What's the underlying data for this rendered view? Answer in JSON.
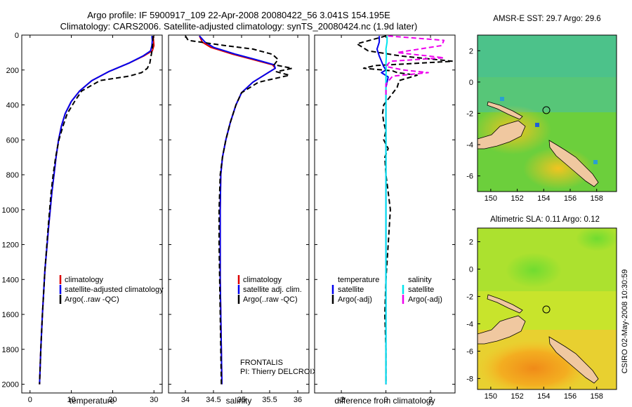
{
  "header": {
    "line1": "Argo profile: IF 5900917_109 22-Apr-2008 20080422_56 3.041S 154.195E",
    "line2": "Climatology: CARS2006. Satellite-adjusted climatology: synTS_20080424.nc (1.9d later)"
  },
  "footer": {
    "stamp": "CSIRO 02-May-2008 10:30:59",
    "pi_line1": "FRONTALIS",
    "pi_line2": "PI: Thierry DELCROIX"
  },
  "colors": {
    "climatology": "#dd0000",
    "satellite": "#0000ee",
    "argo": "#000000",
    "sal_satellite": "#00e5ee",
    "sal_argo": "#ee00ee"
  },
  "chart_data": [
    {
      "type": "line",
      "id": "temperature",
      "xlabel": "temperature",
      "ylabel": "",
      "xlim": [
        -2,
        32
      ],
      "ylim": [
        2050,
        0
      ],
      "xticks": [
        0,
        10,
        20,
        30
      ],
      "yticks": [
        0,
        200,
        400,
        600,
        800,
        1000,
        1200,
        1400,
        1600,
        1800,
        2000
      ],
      "legend": [
        "climatology",
        "satellite-adjusted climatology",
        "Argo(..raw -QC)"
      ],
      "series": [
        {
          "name": "climatology",
          "style": "solid",
          "color": "#dd0000",
          "x": [
            29.8,
            29.9,
            30.0,
            29.6,
            27.5,
            24.0,
            19.0,
            15.0,
            12.0,
            10.0,
            8.5,
            7.6,
            6.9,
            6.3,
            5.8,
            5.3,
            4.5,
            3.6,
            3.0,
            2.6,
            2.3
          ],
          "y": [
            5,
            30,
            60,
            90,
            120,
            160,
            210,
            260,
            320,
            380,
            450,
            520,
            600,
            700,
            800,
            900,
            1100,
            1350,
            1600,
            1800,
            2000
          ]
        },
        {
          "name": "satellite-adjusted climatology",
          "style": "solid",
          "color": "#0000ee",
          "x": [
            29.5,
            29.6,
            29.5,
            29.2,
            27.3,
            24.0,
            19.0,
            15.0,
            12.0,
            10.0,
            8.5,
            7.6,
            6.9,
            6.3,
            5.8,
            5.3,
            4.5,
            3.6,
            3.0,
            2.6,
            2.3
          ],
          "y": [
            5,
            30,
            60,
            90,
            120,
            160,
            210,
            260,
            320,
            380,
            450,
            520,
            600,
            700,
            800,
            900,
            1100,
            1350,
            1600,
            1800,
            2000
          ]
        },
        {
          "name": "Argo(..raw -QC)",
          "style": "dashed",
          "color": "#000000",
          "x": [
            29.8,
            29.7,
            29.6,
            29.3,
            29.0,
            28.4,
            27.0,
            24.0,
            17.0,
            12.5,
            10.8,
            9.0,
            8.0,
            7.0,
            6.2,
            5.6,
            5.1,
            4.4,
            3.6,
            3.0,
            2.6,
            2.3
          ],
          "y": [
            5,
            40,
            80,
            120,
            160,
            190,
            215,
            235,
            260,
            320,
            380,
            450,
            520,
            600,
            700,
            800,
            900,
            1100,
            1350,
            1600,
            1800,
            2000
          ]
        }
      ]
    },
    {
      "type": "line",
      "id": "salinity",
      "xlabel": "salinity",
      "ylabel": "",
      "xlim": [
        33.7,
        36.2
      ],
      "ylim": [
        2050,
        0
      ],
      "xticks": [
        34,
        34.5,
        35,
        35.5,
        36
      ],
      "legend": [
        "climatology",
        "satellite adj. clim.",
        "Argo(..raw -QC)"
      ],
      "series": [
        {
          "name": "climatology",
          "style": "solid",
          "color": "#dd0000",
          "x": [
            34.25,
            34.3,
            34.45,
            34.65,
            34.85,
            35.2,
            35.55,
            35.6,
            35.45,
            35.2,
            35.0,
            34.9,
            34.8,
            34.72,
            34.66,
            34.63,
            34.62,
            34.62,
            34.62,
            34.63,
            34.64,
            34.65
          ],
          "y": [
            5,
            40,
            70,
            90,
            110,
            140,
            170,
            190,
            220,
            270,
            330,
            400,
            500,
            600,
            700,
            800,
            1000,
            1200,
            1400,
            1600,
            1800,
            2000
          ]
        },
        {
          "name": "satellite adj. clim.",
          "style": "solid",
          "color": "#0000ee",
          "x": [
            34.25,
            34.35,
            34.5,
            34.7,
            34.9,
            35.25,
            35.58,
            35.6,
            35.45,
            35.2,
            35.0,
            34.9,
            34.8,
            34.72,
            34.66,
            34.63,
            34.62,
            34.62,
            34.62,
            34.63,
            34.64,
            34.65
          ],
          "y": [
            5,
            40,
            70,
            90,
            110,
            140,
            170,
            190,
            220,
            270,
            330,
            400,
            500,
            600,
            700,
            800,
            1000,
            1200,
            1400,
            1600,
            1800,
            2000
          ]
        },
        {
          "name": "Argo(..raw -QC)",
          "style": "dashed",
          "color": "#000000",
          "x": [
            34.0,
            34.05,
            34.7,
            35.2,
            35.55,
            35.65,
            35.58,
            35.9,
            35.62,
            35.85,
            35.3,
            35.0,
            34.9,
            34.8,
            34.72,
            34.66,
            34.62,
            34.6,
            34.6,
            34.61,
            34.62,
            34.63,
            34.64
          ],
          "y": [
            5,
            30,
            60,
            80,
            110,
            140,
            170,
            190,
            210,
            230,
            270,
            330,
            400,
            500,
            600,
            700,
            800,
            1000,
            1200,
            1400,
            1600,
            1800,
            2000
          ]
        }
      ]
    },
    {
      "type": "line",
      "id": "difference",
      "xlabel": "difference from climatology",
      "ylabel": "",
      "xlim": [
        -3.2,
        3.1
      ],
      "ylim": [
        2050,
        0
      ],
      "xticks": [
        -2,
        0,
        2
      ],
      "legend_left": {
        "title": "temperature",
        "entries": [
          "satellite",
          "Argo(-adj)"
        ]
      },
      "legend_right": {
        "title": "salinity",
        "entries": [
          "satellite",
          "Argo(-adj)"
        ]
      },
      "series": [
        {
          "name": "temperature satellite",
          "style": "solid",
          "color": "#0000ee",
          "x": [
            -0.3,
            -0.3,
            -0.4,
            -0.3,
            -0.2,
            -0.1,
            0.0,
            -0.2,
            0.1,
            0.0,
            0.0,
            0.0,
            0.0,
            0.0
          ],
          "y": [
            5,
            40,
            80,
            120,
            150,
            180,
            200,
            215,
            240,
            300,
            500,
            1000,
            1500,
            2000
          ]
        },
        {
          "name": "temperature Argo(-adj)",
          "style": "dashed",
          "color": "#000000",
          "x": [
            0.0,
            -1.3,
            -0.8,
            0.7,
            3.0,
            -0.5,
            -1.0,
            0.3,
            0.5,
            1.4,
            0.6,
            0.5,
            0.2,
            -0.1,
            -0.15,
            -0.1,
            0.0,
            -0.1,
            0.1,
            -0.05,
            0.0,
            0.1,
            0.2,
            0.1,
            0.0,
            -0.05,
            0.0,
            0.0
          ],
          "y": [
            5,
            50,
            90,
            120,
            150,
            175,
            190,
            205,
            215,
            230,
            260,
            300,
            350,
            400,
            450,
            500,
            550,
            600,
            650,
            700,
            800,
            900,
            1000,
            1200,
            1400,
            1600,
            1800,
            2000
          ]
        },
        {
          "name": "salinity satellite",
          "style": "solid",
          "color": "#00e5ee",
          "x": [
            0.05,
            0.05,
            0.0,
            0.02,
            0.0,
            0.01,
            0.0,
            0.0,
            0.0,
            0.0
          ],
          "y": [
            5,
            40,
            80,
            120,
            160,
            200,
            250,
            400,
            1000,
            2000
          ]
        },
        {
          "name": "salinity Argo(-adj)",
          "style": "dashed",
          "color": "#ee00ee",
          "x": [
            0.1,
            2.6,
            2.5,
            0.5,
            2.6,
            0.2,
            0.0,
            0.8,
            1.9,
            0.3,
            0.0,
            0.0
          ],
          "y": [
            5,
            30,
            60,
            100,
            130,
            150,
            180,
            200,
            215,
            235,
            280,
            350
          ]
        }
      ]
    },
    {
      "type": "heatmap",
      "id": "sst_map",
      "title": "AMSR-E SST: 29.7  Argo: 29.6",
      "xlim": [
        149,
        159.5
      ],
      "ylim": [
        -7,
        3
      ],
      "xticks": [
        150,
        152,
        154,
        156,
        158
      ],
      "yticks": [
        2,
        0,
        -2,
        -4,
        -6
      ],
      "marker": {
        "lon": 154.2,
        "lat": -3.0
      }
    },
    {
      "type": "heatmap",
      "id": "sla_map",
      "title": "Altimetric SLA: 0.11  Argo: 0.12",
      "xlim": [
        149,
        159.5
      ],
      "ylim": [
        -8.8,
        3
      ],
      "xticks": [
        150,
        152,
        154,
        156,
        158
      ],
      "yticks": [
        2,
        0,
        -2,
        -4,
        -6,
        -8
      ],
      "marker": {
        "lon": 154.2,
        "lat": -3.0
      }
    }
  ]
}
